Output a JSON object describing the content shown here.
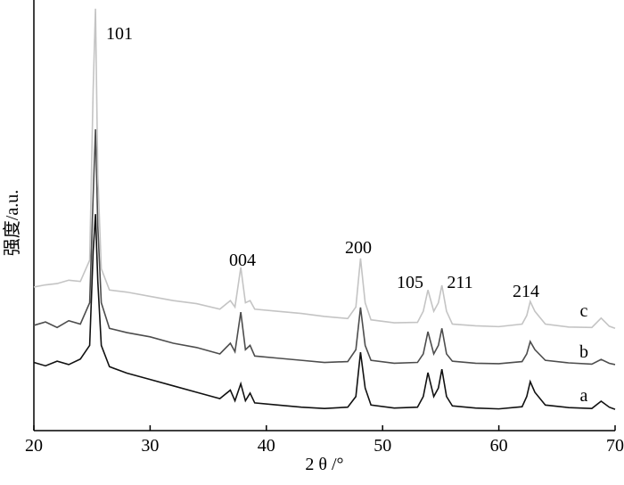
{
  "chart_data": {
    "type": "line",
    "x_label": "2 θ /°",
    "y_label": "强度/a.u.",
    "xlim": [
      20,
      70
    ],
    "xticks": [
      20,
      30,
      40,
      50,
      60,
      70
    ],
    "ylim": [
      0,
      100
    ],
    "annotations": [
      "101",
      "004",
      "200",
      "105",
      "211",
      "214"
    ],
    "x": [
      20,
      21,
      22,
      23,
      24,
      24.8,
      25.1,
      25.3,
      25.5,
      25.8,
      26.5,
      28,
      30,
      32,
      34,
      36,
      36.9,
      37.3,
      37.8,
      38.2,
      38.6,
      39,
      41,
      43,
      45,
      47,
      47.7,
      48.1,
      48.5,
      49,
      51,
      53,
      53.5,
      53.9,
      54.4,
      54.8,
      55.1,
      55.5,
      56,
      58,
      60,
      62,
      62.4,
      62.7,
      63.1,
      64,
      66,
      68,
      68.8,
      69.5,
      70
    ],
    "series": [
      {
        "name": "a",
        "color": "#111111",
        "values": [
          16,
          15.2,
          16.3,
          15.5,
          16.8,
          20,
          42,
          50.8,
          35,
          20,
          15,
          13.5,
          12,
          10.5,
          9,
          7.5,
          9.5,
          7,
          11,
          7,
          8.8,
          6.5,
          6,
          5.5,
          5.2,
          5.5,
          8,
          18.4,
          10,
          6,
          5.3,
          5.5,
          8,
          13.6,
          8,
          10,
          14.4,
          8,
          5.8,
          5.3,
          5.1,
          5.6,
          8,
          11.5,
          9,
          6,
          5.4,
          5.2,
          6.9,
          5.5,
          5
        ]
      },
      {
        "name": "b",
        "color": "#4d4d4d",
        "values": [
          24.7,
          25.5,
          24.2,
          25.8,
          25,
          30,
          55,
          70.7,
          48,
          30,
          24,
          23,
          22,
          20.5,
          19.5,
          18,
          20.5,
          18.5,
          27.8,
          19,
          20,
          17.5,
          17,
          16.5,
          16,
          16.2,
          19,
          28.9,
          20,
          16.5,
          15.8,
          16,
          18,
          23.2,
          18,
          20,
          24,
          18,
          16.3,
          15.8,
          15.7,
          16.2,
          18,
          20.9,
          19,
          16.5,
          15.9,
          15.6,
          16.7,
          15.8,
          15.5
        ]
      },
      {
        "name": "c",
        "color": "#c4c4c4",
        "values": [
          33.7,
          34.2,
          34.5,
          35.3,
          35,
          40,
          80,
          99,
          60,
          38,
          33,
          32.5,
          31.5,
          30.5,
          29.8,
          28.5,
          30.5,
          29,
          38.3,
          30,
          30.5,
          28.5,
          28,
          27.5,
          26.8,
          26.3,
          29,
          40.4,
          30,
          26,
          25.3,
          25.4,
          28,
          33,
          28,
          30,
          34.1,
          28,
          25,
          24.6,
          24.4,
          25,
          27,
          30.3,
          28,
          25,
          24.3,
          24.2,
          26.4,
          24.5,
          24
        ]
      }
    ]
  }
}
